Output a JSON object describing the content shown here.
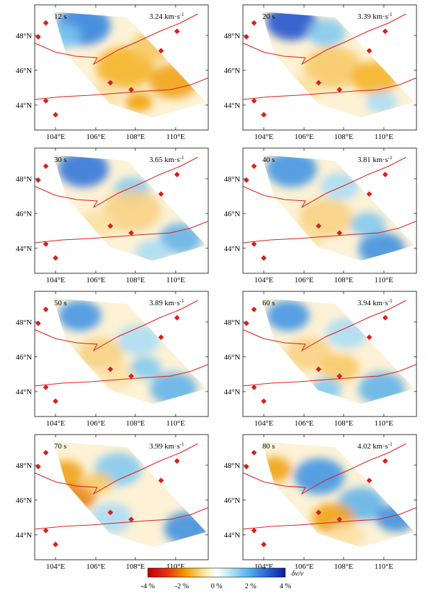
{
  "colors": {
    "fault_line": "#e01818",
    "station_marker": "#d42020",
    "negative_strong": "#c40000",
    "negative_mid": "#f5a500",
    "neutral": "#fff8e8",
    "positive_mid": "#7ec8f0",
    "positive_strong": "#1a3cb8"
  },
  "icons": {
    "station": "red-diamond-icon"
  },
  "axes": {
    "lon_ticks": [
      "104°E",
      "106°E",
      "108°E",
      "110°E"
    ],
    "lat_ticks": [
      "48°N",
      "46°N",
      "44°N"
    ]
  },
  "panels": [
    {
      "period": "12 s",
      "velocity": "3.24 km·s",
      "velocity_sup": "-1"
    },
    {
      "period": "20 s",
      "velocity": "3.39 km·s",
      "velocity_sup": "-1"
    },
    {
      "period": "30 s",
      "velocity": "3.65 km·s",
      "velocity_sup": "-1"
    },
    {
      "period": "40 s",
      "velocity": "3.81 km·s",
      "velocity_sup": "-1"
    },
    {
      "period": "50 s",
      "velocity": "3.89 km·s",
      "velocity_sup": "-1"
    },
    {
      "period": "60 s",
      "velocity": "3.94 km·s",
      "velocity_sup": "-1"
    },
    {
      "period": "70 s",
      "velocity": "3.99 km·s",
      "velocity_sup": "-1"
    },
    {
      "period": "80 s",
      "velocity": "4.02 km·s",
      "velocity_sup": "-1"
    }
  ],
  "colorbar": {
    "ticks": [
      "-4 %",
      "-2 %",
      "0 %",
      "2 %",
      "4 %"
    ],
    "label": "δv/v"
  }
}
